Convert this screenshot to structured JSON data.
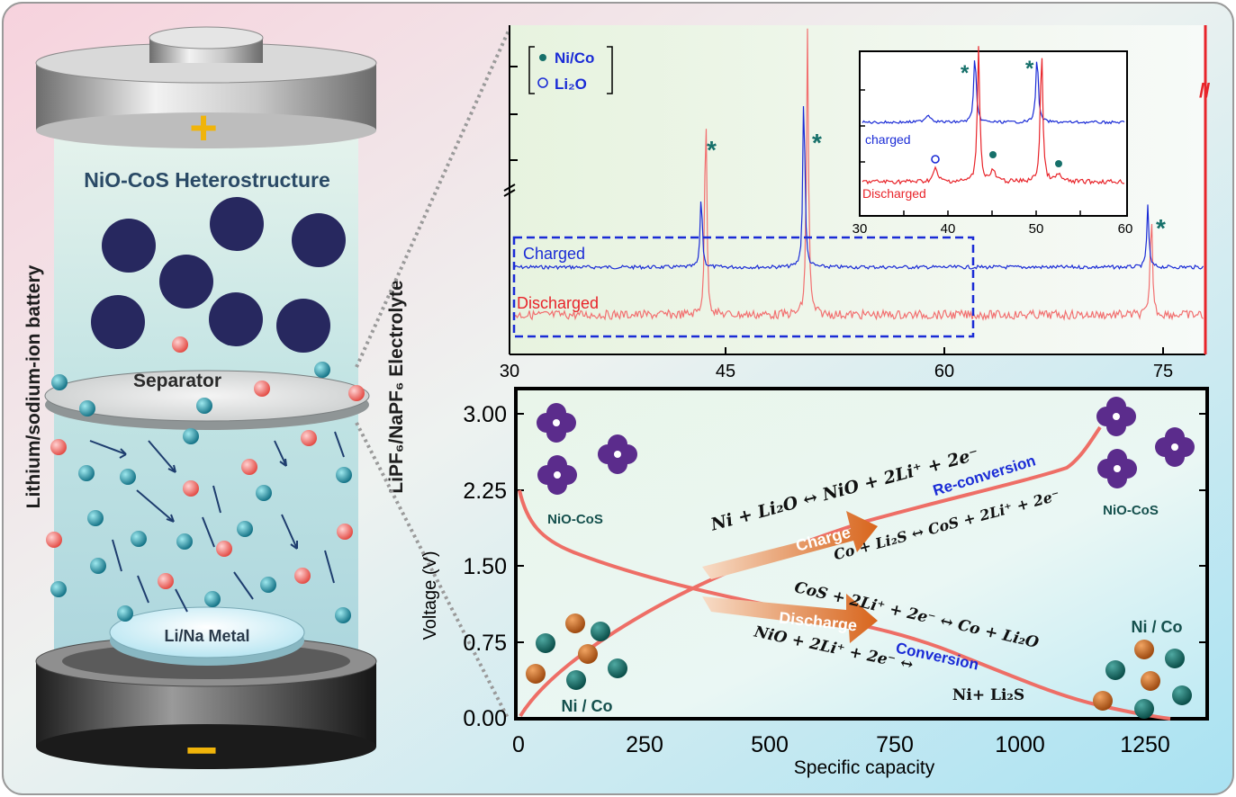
{
  "battery": {
    "plus": "+",
    "minus": "−",
    "title": "NiO-CoS Heterostructure",
    "separator": "Separator",
    "metal": "Li/Na Metal",
    "side_label": "Lithium/sodium-ion battery",
    "electrolyte_label": "LiPF₆/NaPF₆ Electrolyte"
  },
  "xrd": {
    "legend": {
      "marker1": "Ni/Co",
      "marker2": "Li₂O"
    },
    "charged_label": "Charged",
    "discharged_label": "Discharged",
    "x_ticks": [
      "30",
      "45",
      "60",
      "75"
    ],
    "star": "*",
    "break_mark": "//",
    "inset": {
      "charged_label": "charged",
      "discharged_label": "Discharged",
      "x_ticks": [
        "30",
        "40",
        "50",
        "60"
      ]
    },
    "colors": {
      "charged": "#1a2bd6",
      "discharged": "#e8242a",
      "marker": "#16706a",
      "box": "#1a2bd6"
    }
  },
  "voltage_plot": {
    "ylabel": "Voltage (V)",
    "xlabel": "Specific capacity",
    "y_ticks": [
      "3.00",
      "2.25",
      "1.50",
      "0.75",
      "0.00"
    ],
    "x_ticks": [
      "0",
      "250",
      "500",
      "750",
      "1000",
      "1250"
    ],
    "nio_cos_left": "NiO-CoS",
    "nio_cos_right": "NiO-CoS",
    "nico_left": "Ni / Co",
    "nico_right": "Ni / Co",
    "charge_arrow": "Charge",
    "discharge_arrow": "Discharge",
    "reconversion": "Re-conversion",
    "conversion": "Conversion",
    "eq_charge1": "Ni + Li₂O ↔ NiO + 2Li⁺ + 2e⁻",
    "eq_charge2": "Co + Li₂S ↔ CoS + 2Li⁺ + 2e⁻",
    "eq_dis1": "CoS + 2Li⁺ + 2e⁻ ↔ Co + Li₂O",
    "eq_dis2a": "NiO + 2Li⁺ + 2e⁻ ↔",
    "eq_dis2b": "Ni+ Li₂S"
  }
}
